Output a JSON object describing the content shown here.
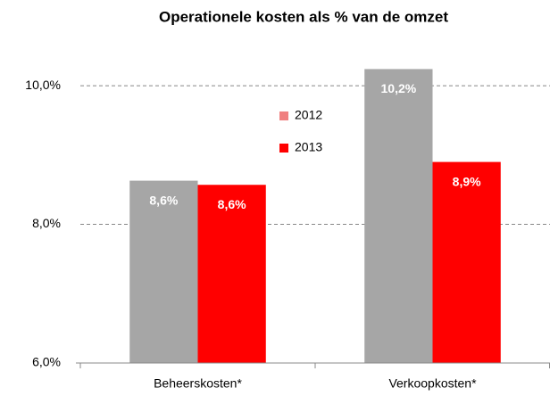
{
  "chart_data": {
    "type": "bar",
    "title": "Operationele kosten als % van de omzet",
    "categories": [
      "Beheerskosten*",
      "Verkoopkosten*"
    ],
    "series": [
      {
        "name": "2012",
        "color": "#a6a6a6",
        "legend_color": "#f08080",
        "values": [
          8.63,
          10.24
        ],
        "value_labels": [
          "8,6%",
          "10,2%"
        ]
      },
      {
        "name": "2013",
        "color": "#ff0000",
        "legend_color": "#ff0000",
        "values": [
          8.57,
          8.9
        ],
        "value_labels": [
          "8,6%",
          "8,9%"
        ]
      }
    ],
    "ylim": [
      6,
      10.4
    ],
    "yticks": [
      {
        "value": 6,
        "label": "6,0%"
      },
      {
        "value": 8,
        "label": "8,0%"
      },
      {
        "value": 10,
        "label": "10,0%"
      }
    ],
    "grid": true
  }
}
